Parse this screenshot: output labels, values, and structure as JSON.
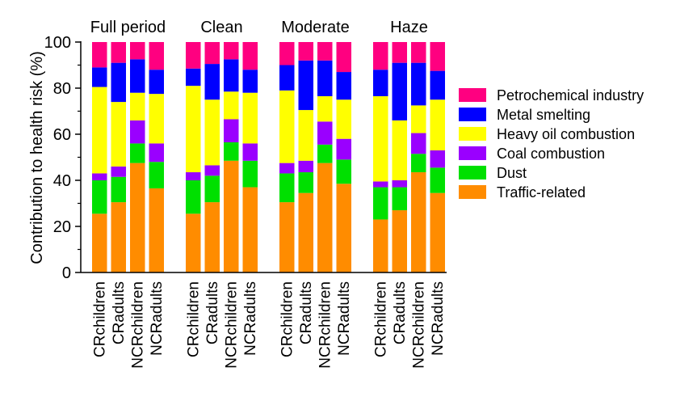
{
  "chart_data": {
    "type": "bar",
    "stacked": true,
    "ylabel": "Contribution to health risk (%)",
    "ylim": [
      0,
      100
    ],
    "yticks": [
      0,
      20,
      40,
      60,
      80,
      100
    ],
    "grid": false,
    "legend_position": "right",
    "categories": [
      "CRchildren",
      "CRadults",
      "NCRchildren",
      "NCRadults"
    ],
    "groups": [
      {
        "title": "Full period",
        "stacks": [
          [
            25.5,
            14.5,
            3,
            37.5,
            8.5,
            11
          ],
          [
            30.5,
            11,
            4.5,
            28,
            17,
            9
          ],
          [
            47.5,
            8.5,
            10,
            12,
            14.5,
            7.5
          ],
          [
            36.5,
            11.5,
            8,
            21.5,
            10.5,
            12
          ]
        ]
      },
      {
        "title": "Clean",
        "stacks": [
          [
            25.5,
            14.5,
            3.5,
            37.5,
            7.5,
            11.5
          ],
          [
            30.5,
            11.5,
            4.5,
            28.5,
            15.5,
            9.5
          ],
          [
            48.5,
            8,
            10,
            12,
            14,
            7.5
          ],
          [
            37,
            11.5,
            7.5,
            22,
            10,
            12
          ]
        ]
      },
      {
        "title": "Moderate",
        "stacks": [
          [
            30.5,
            12.5,
            4.5,
            31.5,
            11,
            10
          ],
          [
            34.5,
            9,
            5,
            22,
            21.5,
            8
          ],
          [
            47.5,
            8,
            10,
            11,
            15.5,
            8
          ],
          [
            38.5,
            10.5,
            9,
            17,
            12,
            13
          ]
        ]
      },
      {
        "title": "Haze",
        "stacks": [
          [
            23,
            14,
            2.5,
            37,
            11.5,
            12
          ],
          [
            27,
            10,
            3,
            26,
            25,
            9
          ],
          [
            43.5,
            8,
            9,
            12,
            18.5,
            9
          ],
          [
            34.5,
            11,
            7.5,
            22,
            12.5,
            12.5
          ]
        ]
      }
    ],
    "series": [
      {
        "name": "Traffic-related",
        "color": "#ff8c00"
      },
      {
        "name": "Dust",
        "color": "#00e000"
      },
      {
        "name": "Coal combustion",
        "color": "#9a00ff"
      },
      {
        "name": "Heavy oil combustion",
        "color": "#ffff00"
      },
      {
        "name": "Metal smelting",
        "color": "#0000ff"
      },
      {
        "name": "Petrochemical industry",
        "color": "#ff0080"
      }
    ]
  }
}
